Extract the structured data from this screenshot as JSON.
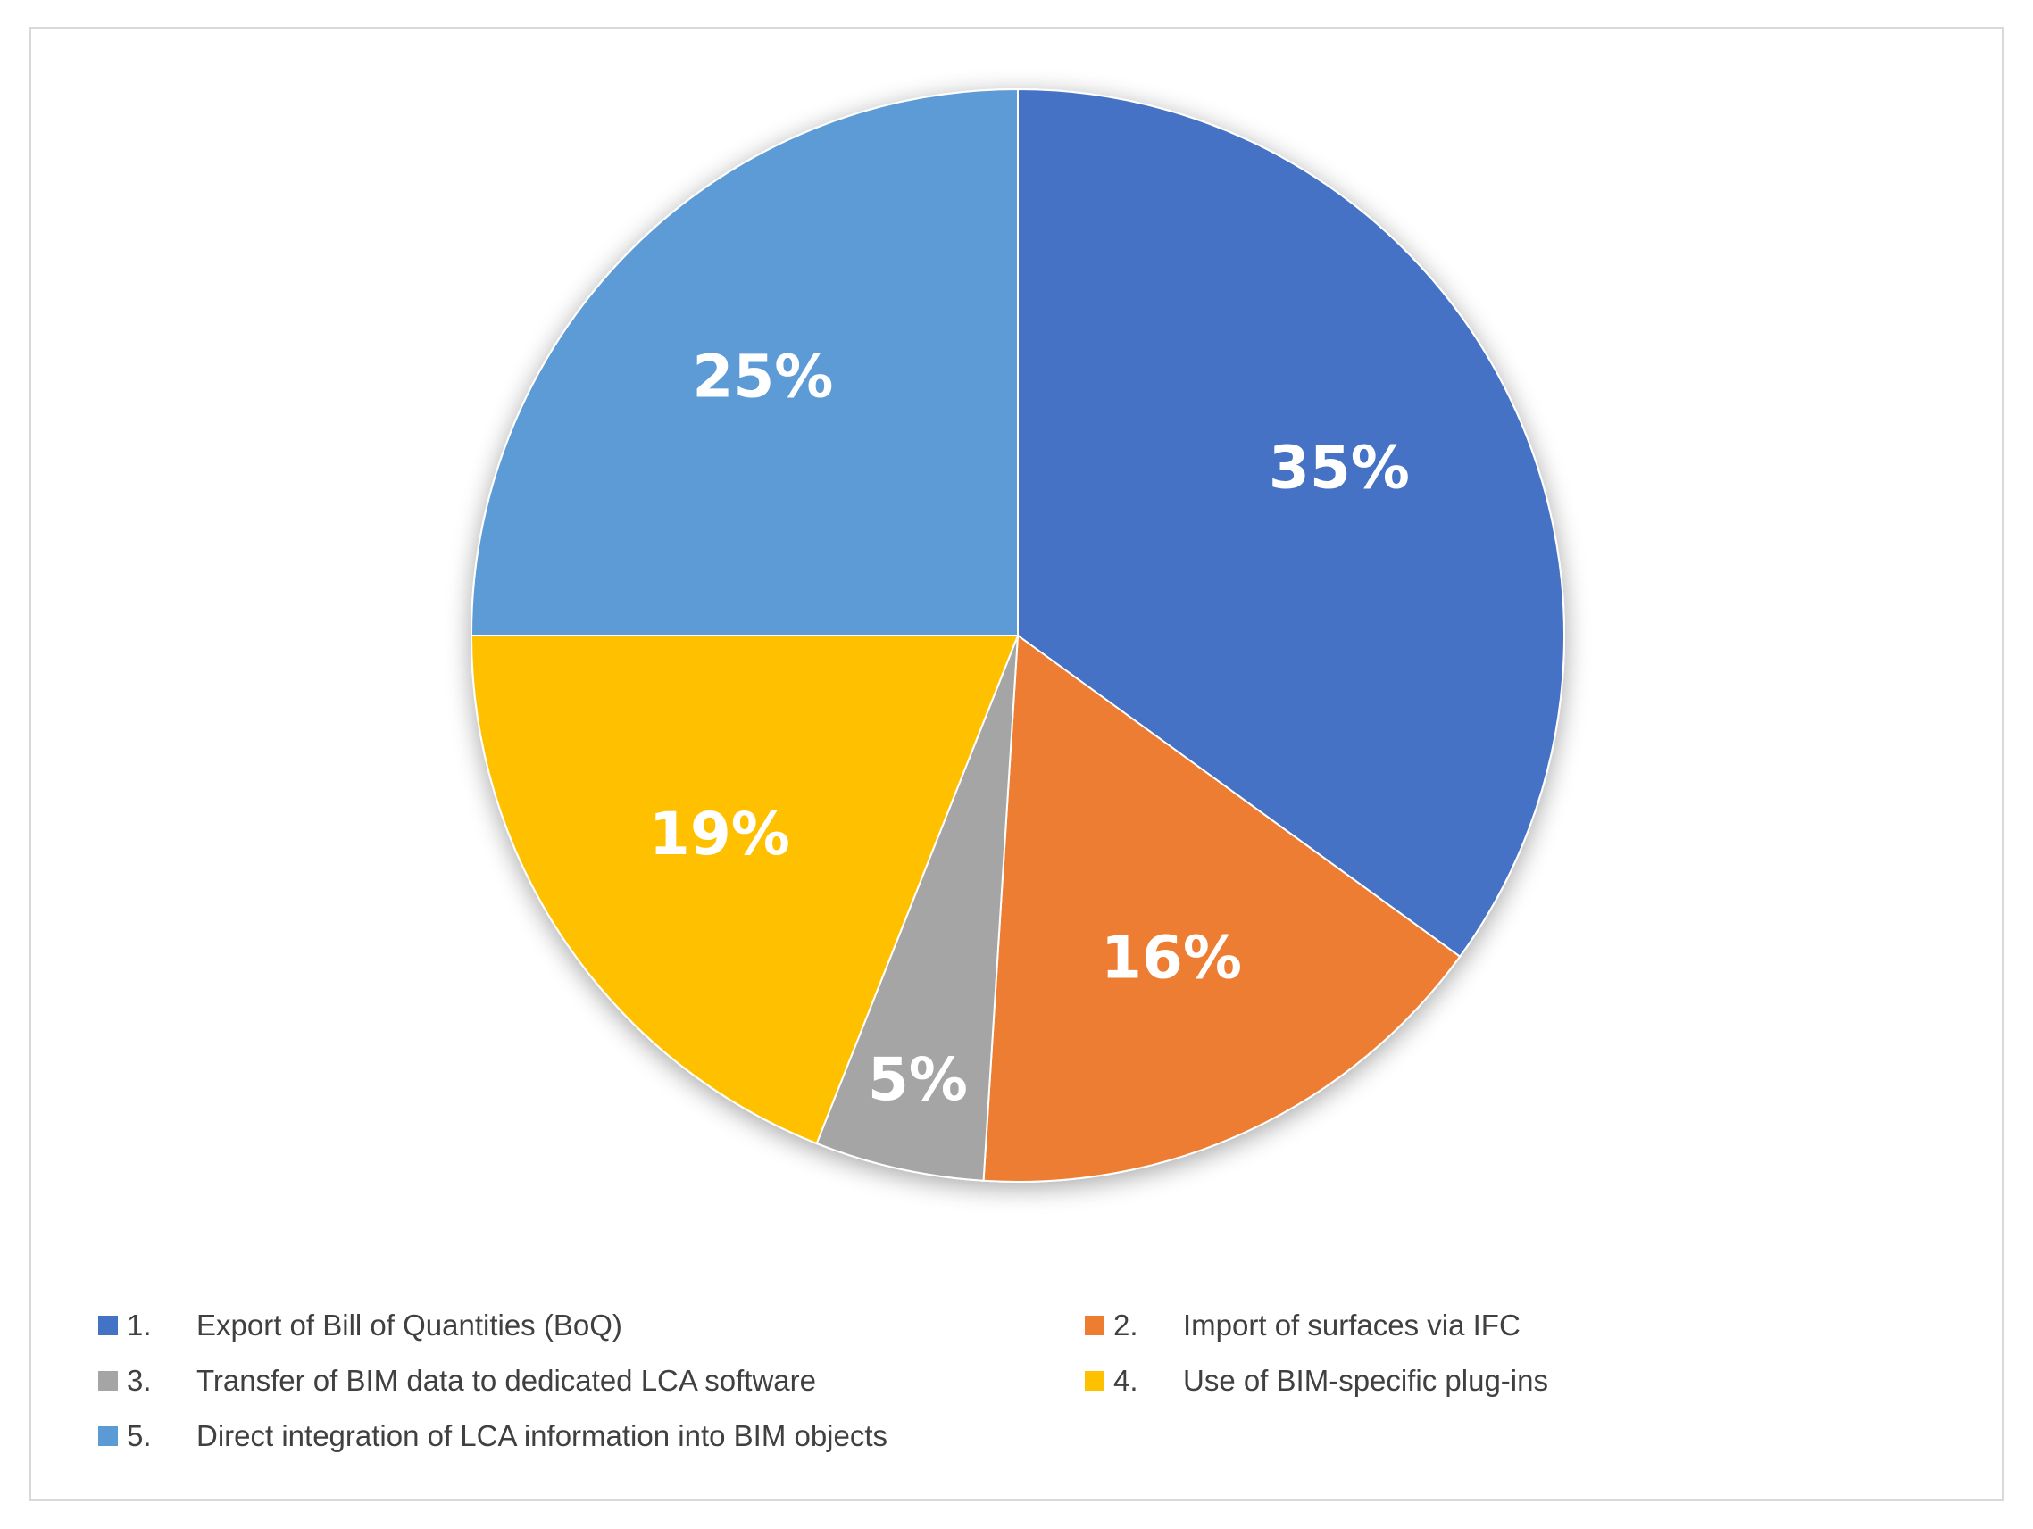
{
  "chart_data": {
    "type": "pie",
    "slices": [
      {
        "number": "1.",
        "label": "Export of Bill of Quantities (BoQ)",
        "value": 35,
        "value_label": "35%",
        "color": "#4472C4"
      },
      {
        "number": "2.",
        "label": "Import of surfaces via IFC",
        "value": 16,
        "value_label": "16%",
        "color": "#ED7D31"
      },
      {
        "number": "3.",
        "label": "Transfer of BIM data to dedicated LCA software",
        "value": 5,
        "value_label": "5%",
        "color": "#A5A5A5"
      },
      {
        "number": "4.",
        "label": "Use of BIM-specific plug-ins",
        "value": 19,
        "value_label": "19%",
        "color": "#FFC000"
      },
      {
        "number": "5.",
        "label": "Direct integration of LCA information into BIM objects",
        "value": 25,
        "value_label": "25%",
        "color": "#5B9BD5"
      }
    ],
    "start_angle": "12 o'clock",
    "direction": "clockwise",
    "legend_position": "bottom",
    "data_labels": "inside, white bold"
  }
}
